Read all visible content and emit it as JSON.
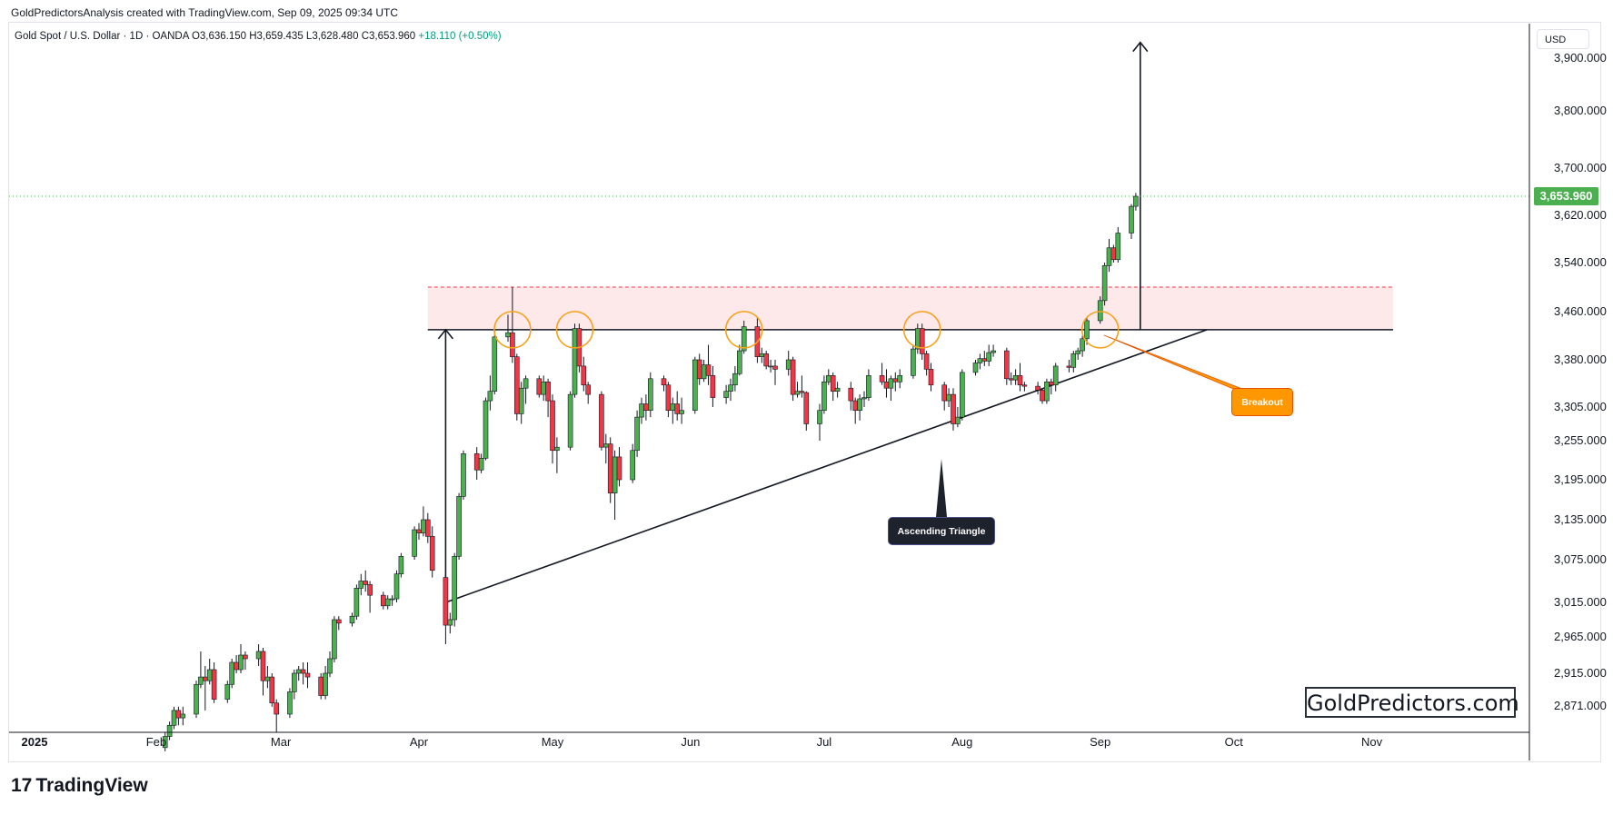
{
  "header": {
    "caption": "GoldPredictorsAnalysis created with TradingView.com, Sep 09, 2025 09:34 UTC"
  },
  "legend": {
    "symbol": "Gold Spot / U.S. Dollar · 1D · OANDA",
    "open": "O3,636.150",
    "high": "H3,659.435",
    "low": "L3,628.480",
    "close": "C3,653.960",
    "change": "+18.110 (+0.50%)"
  },
  "currency": "USD",
  "last_price_label": "3,653.960",
  "watermark": "GoldPredictors.com",
  "annotations": {
    "pattern": "Ascending Triangle",
    "breakout": "Breakout"
  },
  "footer": {
    "brand": "TradingView",
    "logo_mark": "17"
  },
  "colors": {
    "up": "#4caf50",
    "down": "#f23645",
    "zone": "#fde8ea",
    "zone_border": "#f23645",
    "highlight_circle": "#f7a21b",
    "annotation_orange": "#ff9800"
  },
  "chart_data": {
    "type": "candlestick",
    "symbol": "XAUUSD",
    "timeframe": "1D",
    "y_tick_labels": [
      "3,900.000",
      "3,800.000",
      "3,700.000",
      "3,620.000",
      "3,540.000",
      "3,460.000",
      "3,380.000",
      "3,305.000",
      "3,255.000",
      "3,195.000",
      "3,135.000",
      "3,075.000",
      "3,015.000",
      "2,965.000",
      "2,915.000",
      "2,871.000"
    ],
    "x_tick_labels": [
      "2025",
      "Feb",
      "Mar",
      "Apr",
      "May",
      "Jun",
      "Jul",
      "Aug",
      "Sep",
      "Oct",
      "Nov"
    ],
    "resistance": 3430,
    "zone": [
      3430,
      3500
    ],
    "support_line": {
      "from": [
        "2025-04-07",
        3015
      ],
      "to": [
        "2025-09-25",
        3430
      ]
    },
    "target_arrow": {
      "date": "2025-09-10",
      "from": 3430,
      "to": 3930
    },
    "measure_arrow": {
      "date": "2025-04-07",
      "from": 3015,
      "to": 3430
    },
    "highlight_dates": [
      "2025-04-22",
      "2025-05-06",
      "2025-06-13",
      "2025-07-23",
      "2025-09-01"
    ],
    "candles": [
      [
        "2025-02-03",
        2815,
        2835,
        2810,
        2830
      ],
      [
        "2025-02-04",
        2830,
        2850,
        2825,
        2845
      ],
      [
        "2025-02-05",
        2845,
        2870,
        2840,
        2865
      ],
      [
        "2025-02-06",
        2865,
        2870,
        2845,
        2855
      ],
      [
        "2025-02-07",
        2855,
        2870,
        2845,
        2860
      ],
      [
        "2025-02-10",
        2860,
        2905,
        2855,
        2900
      ],
      [
        "2025-02-11",
        2900,
        2945,
        2895,
        2910
      ],
      [
        "2025-02-12",
        2910,
        2925,
        2865,
        2905
      ],
      [
        "2025-02-13",
        2905,
        2935,
        2900,
        2920
      ],
      [
        "2025-02-14",
        2920,
        2930,
        2875,
        2880
      ],
      [
        "2025-02-17",
        2880,
        2905,
        2875,
        2900
      ],
      [
        "2025-02-18",
        2900,
        2935,
        2895,
        2930
      ],
      [
        "2025-02-19",
        2930,
        2940,
        2915,
        2920
      ],
      [
        "2025-02-20",
        2920,
        2955,
        2915,
        2940
      ],
      [
        "2025-02-21",
        2940,
        2945,
        2920,
        2935
      ],
      [
        "2025-02-24",
        2935,
        2955,
        2925,
        2945
      ],
      [
        "2025-02-25",
        2945,
        2950,
        2885,
        2905
      ],
      [
        "2025-02-26",
        2905,
        2925,
        2895,
        2910
      ],
      [
        "2025-02-27",
        2910,
        2915,
        2870,
        2875
      ],
      [
        "2025-02-28",
        2875,
        2880,
        2835,
        2860
      ],
      [
        "2025-03-03",
        2860,
        2895,
        2855,
        2890
      ],
      [
        "2025-03-04",
        2890,
        2920,
        2880,
        2915
      ],
      [
        "2025-03-05",
        2915,
        2925,
        2905,
        2920
      ],
      [
        "2025-03-06",
        2920,
        2930,
        2900,
        2915
      ],
      [
        "2025-03-07",
        2915,
        2930,
        2895,
        2910
      ],
      [
        "2025-03-10",
        2910,
        2915,
        2880,
        2885
      ],
      [
        "2025-03-11",
        2885,
        2925,
        2880,
        2915
      ],
      [
        "2025-03-12",
        2915,
        2945,
        2910,
        2935
      ],
      [
        "2025-03-13",
        2935,
        2995,
        2930,
        2990
      ],
      [
        "2025-03-14",
        2990,
        2995,
        2975,
        2985
      ],
      [
        "2025-03-17",
        2985,
        3000,
        2980,
        2995
      ],
      [
        "2025-03-18",
        2995,
        3040,
        2990,
        3035
      ],
      [
        "2025-03-19",
        3035,
        3055,
        3025,
        3045
      ],
      [
        "2025-03-20",
        3045,
        3060,
        3030,
        3040
      ],
      [
        "2025-03-21",
        3040,
        3045,
        3000,
        3025
      ],
      [
        "2025-03-24",
        3025,
        3030,
        3005,
        3010
      ],
      [
        "2025-03-25",
        3010,
        3025,
        3005,
        3020
      ],
      [
        "2025-03-26",
        3020,
        3025,
        3010,
        3020
      ],
      [
        "2025-03-27",
        3020,
        3060,
        3015,
        3055
      ],
      [
        "2025-03-28",
        3055,
        3085,
        3050,
        3080
      ],
      [
        "2025-03-31",
        3080,
        3125,
        3075,
        3120
      ],
      [
        "2025-04-01",
        3120,
        3130,
        3105,
        3115
      ],
      [
        "2025-04-02",
        3115,
        3155,
        3110,
        3135
      ],
      [
        "2025-04-03",
        3135,
        3145,
        3100,
        3110
      ],
      [
        "2025-04-04",
        3110,
        3125,
        3050,
        3060
      ],
      [
        "2025-04-07",
        3050,
        3055,
        2955,
        2982
      ],
      [
        "2025-04-08",
        2982,
        3000,
        2970,
        2990
      ],
      [
        "2025-04-09",
        2990,
        3085,
        2980,
        3080
      ],
      [
        "2025-04-10",
        3080,
        3175,
        3075,
        3170
      ],
      [
        "2025-04-11",
        3170,
        3240,
        3165,
        3235
      ],
      [
        "2025-04-14",
        3235,
        3245,
        3195,
        3210
      ],
      [
        "2025-04-15",
        3210,
        3235,
        3205,
        3228
      ],
      [
        "2025-04-16",
        3228,
        3320,
        3225,
        3315
      ],
      [
        "2025-04-17",
        3315,
        3355,
        3300,
        3330
      ],
      [
        "2025-04-18",
        3330,
        3430,
        3325,
        3418
      ],
      [
        "2025-04-21",
        3418,
        3455,
        3410,
        3425
      ],
      [
        "2025-04-22",
        3425,
        3500,
        3375,
        3385
      ],
      [
        "2025-04-23",
        3385,
        3390,
        3285,
        3295
      ],
      [
        "2025-04-24",
        3295,
        3345,
        3280,
        3335
      ],
      [
        "2025-04-25",
        3335,
        3355,
        3310,
        3350
      ],
      [
        "2025-04-28",
        3350,
        3355,
        3320,
        3325
      ],
      [
        "2025-04-29",
        3325,
        3355,
        3315,
        3345
      ],
      [
        "2025-04-30",
        3345,
        3350,
        3290,
        3315
      ],
      [
        "2025-05-01",
        3315,
        3325,
        3220,
        3240
      ],
      [
        "2025-05-02",
        3240,
        3260,
        3205,
        3245
      ],
      [
        "2025-05-05",
        3245,
        3330,
        3240,
        3325
      ],
      [
        "2025-05-06",
        3325,
        3440,
        3320,
        3432
      ],
      [
        "2025-05-07",
        3432,
        3440,
        3360,
        3370
      ],
      [
        "2025-05-08",
        3370,
        3385,
        3330,
        3340
      ],
      [
        "2025-05-09",
        3340,
        3345,
        3310,
        3325
      ],
      [
        "2025-05-12",
        3325,
        3330,
        3240,
        3245
      ],
      [
        "2025-05-13",
        3245,
        3265,
        3220,
        3250
      ],
      [
        "2025-05-14",
        3250,
        3260,
        3160,
        3175
      ],
      [
        "2025-05-15",
        3175,
        3240,
        3135,
        3230
      ],
      [
        "2025-05-16",
        3230,
        3245,
        3185,
        3195
      ],
      [
        "2025-05-19",
        3195,
        3250,
        3190,
        3240
      ],
      [
        "2025-05-20",
        3240,
        3300,
        3230,
        3290
      ],
      [
        "2025-05-21",
        3290,
        3320,
        3280,
        3310
      ],
      [
        "2025-05-22",
        3310,
        3325,
        3285,
        3300
      ],
      [
        "2025-05-23",
        3300,
        3360,
        3290,
        3350
      ],
      [
        "2025-05-26",
        3350,
        3355,
        3330,
        3340
      ],
      [
        "2025-05-27",
        3340,
        3345,
        3290,
        3300
      ],
      [
        "2025-05-28",
        3300,
        3320,
        3280,
        3310
      ],
      [
        "2025-05-29",
        3310,
        3330,
        3285,
        3295
      ],
      [
        "2025-05-30",
        3295,
        3320,
        3280,
        3300
      ],
      [
        "2025-06-02",
        3300,
        3385,
        3295,
        3380
      ],
      [
        "2025-06-03",
        3380,
        3390,
        3340,
        3350
      ],
      [
        "2025-06-04",
        3350,
        3380,
        3345,
        3372
      ],
      [
        "2025-06-05",
        3372,
        3405,
        3340,
        3355
      ],
      [
        "2025-06-06",
        3355,
        3370,
        3305,
        3320
      ],
      [
        "2025-06-09",
        3320,
        3340,
        3310,
        3330
      ],
      [
        "2025-06-10",
        3330,
        3350,
        3315,
        3340
      ],
      [
        "2025-06-11",
        3340,
        3370,
        3330,
        3358
      ],
      [
        "2025-06-12",
        3358,
        3405,
        3355,
        3395
      ],
      [
        "2025-06-13",
        3395,
        3445,
        3390,
        3435
      ],
      [
        "2025-06-16",
        3435,
        3450,
        3375,
        3385
      ],
      [
        "2025-06-17",
        3385,
        3400,
        3375,
        3390
      ],
      [
        "2025-06-18",
        3390,
        3395,
        3365,
        3370
      ],
      [
        "2025-06-19",
        3370,
        3380,
        3360,
        3370
      ],
      [
        "2025-06-20",
        3370,
        3380,
        3340,
        3365
      ],
      [
        "2025-06-23",
        3365,
        3395,
        3355,
        3380
      ],
      [
        "2025-06-24",
        3380,
        3385,
        3315,
        3325
      ],
      [
        "2025-06-25",
        3325,
        3345,
        3320,
        3330
      ],
      [
        "2025-06-26",
        3330,
        3355,
        3320,
        3328
      ],
      [
        "2025-06-27",
        3328,
        3330,
        3270,
        3280
      ],
      [
        "2025-06-30",
        3280,
        3310,
        3255,
        3300
      ],
      [
        "2025-07-01",
        3300,
        3355,
        3295,
        3345
      ],
      [
        "2025-07-02",
        3345,
        3365,
        3340,
        3355
      ],
      [
        "2025-07-03",
        3355,
        3360,
        3315,
        3330
      ],
      [
        "2025-07-04",
        3330,
        3345,
        3320,
        3335
      ],
      [
        "2025-07-07",
        3335,
        3345,
        3300,
        3315
      ],
      [
        "2025-07-08",
        3315,
        3320,
        3280,
        3300
      ],
      [
        "2025-07-09",
        3300,
        3325,
        3285,
        3318
      ],
      [
        "2025-07-10",
        3318,
        3330,
        3305,
        3320
      ],
      [
        "2025-07-11",
        3320,
        3365,
        3315,
        3355
      ],
      [
        "2025-07-14",
        3355,
        3375,
        3340,
        3345
      ],
      [
        "2025-07-15",
        3345,
        3365,
        3320,
        3335
      ],
      [
        "2025-07-16",
        3335,
        3355,
        3315,
        3350
      ],
      [
        "2025-07-17",
        3350,
        3360,
        3330,
        3345
      ],
      [
        "2025-07-18",
        3345,
        3365,
        3335,
        3355
      ],
      [
        "2025-07-21",
        3355,
        3405,
        3350,
        3398
      ],
      [
        "2025-07-22",
        3398,
        3440,
        3390,
        3432
      ],
      [
        "2025-07-23",
        3432,
        3440,
        3380,
        3390
      ],
      [
        "2025-07-24",
        3390,
        3395,
        3355,
        3365
      ],
      [
        "2025-07-25",
        3365,
        3375,
        3330,
        3340
      ],
      [
        "2025-07-28",
        3340,
        3345,
        3300,
        3315
      ],
      [
        "2025-07-29",
        3315,
        3335,
        3305,
        3325
      ],
      [
        "2025-07-30",
        3325,
        3335,
        3270,
        3280
      ],
      [
        "2025-07-31",
        3280,
        3305,
        3275,
        3290
      ],
      [
        "2025-08-01",
        3290,
        3365,
        3285,
        3360
      ],
      [
        "2025-08-04",
        3360,
        3380,
        3355,
        3375
      ],
      [
        "2025-08-05",
        3375,
        3390,
        3365,
        3382
      ],
      [
        "2025-08-06",
        3382,
        3395,
        3370,
        3378
      ],
      [
        "2025-08-07",
        3378,
        3405,
        3370,
        3392
      ],
      [
        "2025-08-08",
        3392,
        3405,
        3385,
        3395
      ],
      [
        "2025-08-11",
        3395,
        3400,
        3340,
        3350
      ],
      [
        "2025-08-12",
        3350,
        3360,
        3340,
        3348
      ],
      [
        "2025-08-13",
        3348,
        3365,
        3340,
        3355
      ],
      [
        "2025-08-14",
        3355,
        3375,
        3330,
        3340
      ],
      [
        "2025-08-15",
        3340,
        3345,
        3330,
        3338
      ],
      [
        "2025-08-18",
        3338,
        3345,
        3325,
        3332
      ],
      [
        "2025-08-19",
        3332,
        3335,
        3310,
        3315
      ],
      [
        "2025-08-20",
        3315,
        3350,
        3310,
        3345
      ],
      [
        "2025-08-21",
        3345,
        3350,
        3325,
        3340
      ],
      [
        "2025-08-22",
        3340,
        3375,
        3330,
        3370
      ],
      [
        "2025-08-25",
        3370,
        3380,
        3360,
        3368
      ],
      [
        "2025-08-26",
        3368,
        3395,
        3360,
        3390
      ],
      [
        "2025-08-27",
        3390,
        3400,
        3380,
        3395
      ],
      [
        "2025-08-28",
        3395,
        3420,
        3385,
        3415
      ],
      [
        "2025-08-29",
        3415,
        3450,
        3405,
        3445
      ],
      [
        "2025-09-01",
        3445,
        3485,
        3440,
        3478
      ],
      [
        "2025-09-02",
        3478,
        3540,
        3470,
        3535
      ],
      [
        "2025-09-03",
        3535,
        3580,
        3525,
        3565
      ],
      [
        "2025-09-04",
        3565,
        3570,
        3540,
        3545
      ],
      [
        "2025-09-05",
        3545,
        3600,
        3540,
        3590
      ],
      [
        "2025-09-08",
        3590,
        3640,
        3580,
        3636
      ],
      [
        "2025-09-09",
        3636,
        3659.435,
        3628.48,
        3653.96
      ]
    ]
  }
}
